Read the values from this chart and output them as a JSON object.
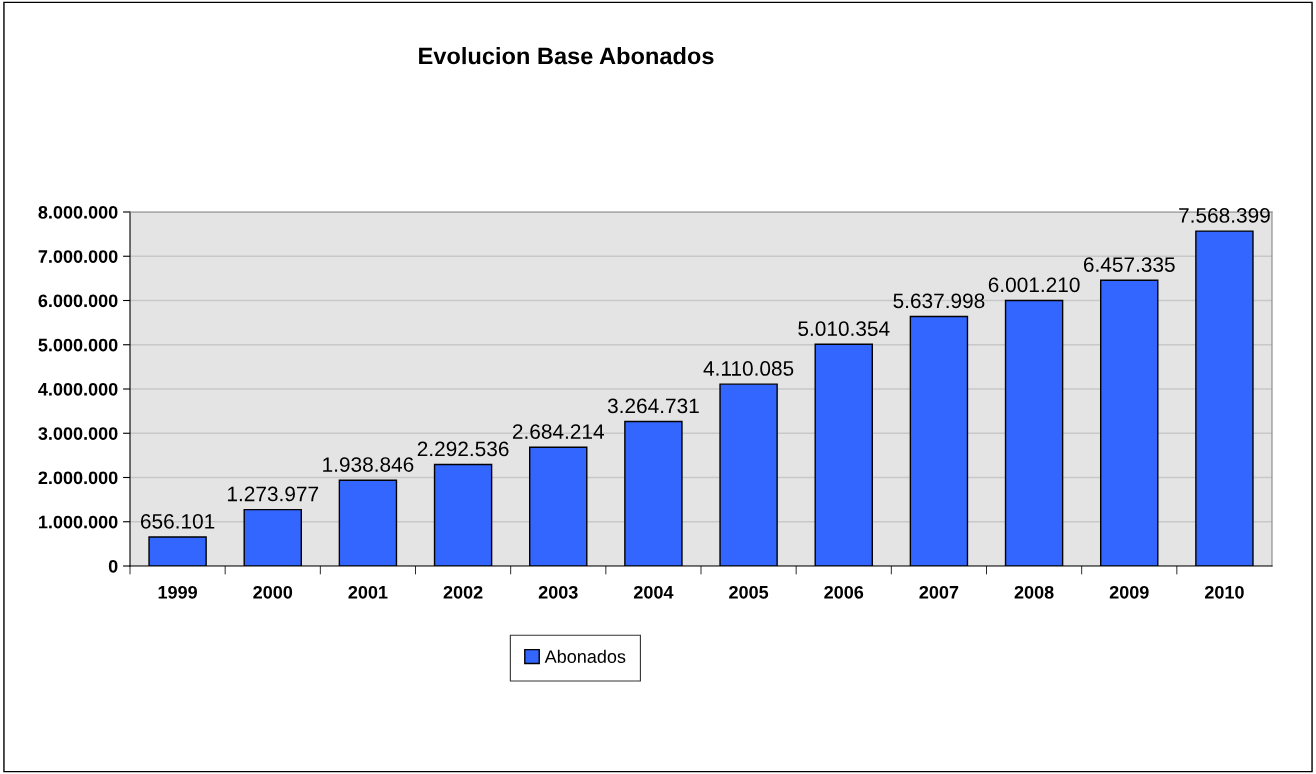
{
  "chart_data": {
    "type": "bar",
    "title": "Evolucion Base Abonados",
    "categories": [
      "1999",
      "2000",
      "2001",
      "2002",
      "2003",
      "2004",
      "2005",
      "2006",
      "2007",
      "2008",
      "2009",
      "2010"
    ],
    "series": [
      {
        "name": "Abonados",
        "color": "#3366ff",
        "values": [
          656101,
          1273977,
          1938846,
          2292536,
          2684214,
          3264731,
          4110085,
          5010354,
          5637998,
          6001210,
          6457335,
          7568399
        ],
        "value_labels": [
          "656.101",
          "1.273.977",
          "1.938.846",
          "2.292.536",
          "2.684.214",
          "3.264.731",
          "4.110.085",
          "5.010.354",
          "5.637.998",
          "6.001.210",
          "6.457.335",
          "7.568.399"
        ]
      }
    ],
    "ylim": [
      0,
      8000000
    ],
    "yticks": [
      {
        "value": 0,
        "label": "0"
      },
      {
        "value": 1000000,
        "label": "1.000.000"
      },
      {
        "value": 2000000,
        "label": "2.000.000"
      },
      {
        "value": 3000000,
        "label": "3.000.000"
      },
      {
        "value": 4000000,
        "label": "4.000.000"
      },
      {
        "value": 5000000,
        "label": "5.000.000"
      },
      {
        "value": 6000000,
        "label": "6.000.000"
      },
      {
        "value": 7000000,
        "label": "7.000.000"
      },
      {
        "value": 8000000,
        "label": "8.000.000"
      }
    ],
    "grid": "y",
    "legend": "bottom"
  }
}
